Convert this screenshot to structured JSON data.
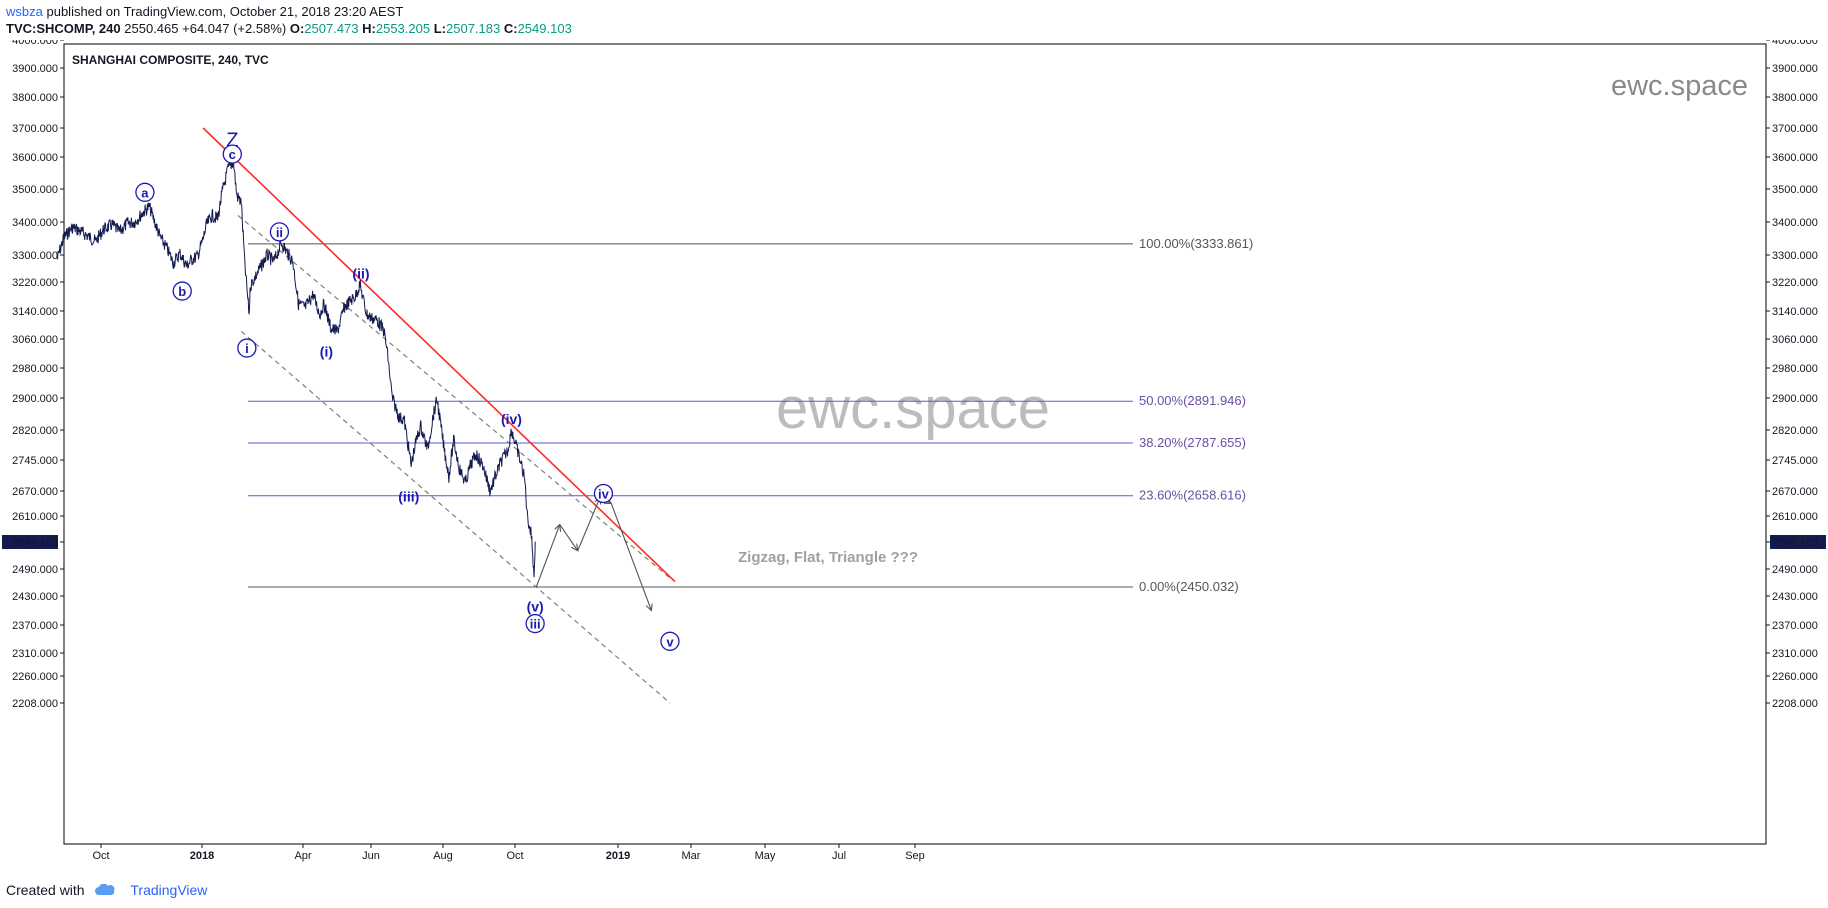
{
  "header": {
    "author": "wsbza",
    "published_text": "published on TradingView.com, October 21, 2018 23:20 AEST",
    "symbol": "TVC:SHCOMP, 240",
    "last": "2550.465",
    "change": "+64.047 (+2.58%)",
    "o_label": "O:",
    "o_value": "2507.473",
    "h_label": "H:",
    "h_value": "2553.205",
    "l_label": "L:",
    "l_value": "2507.183",
    "c_label": "C:",
    "c_value": "2549.103"
  },
  "footer": {
    "created_with": "Created with",
    "brand": "TradingView"
  },
  "colors": {
    "price": "#131b4f",
    "wave_label": "#1a1ab3",
    "fib_line": "#5b5bd6",
    "fib_text": "#6a4fa3",
    "trend_red": "#ff2a2a",
    "channel": "#7f7f7f",
    "last_price_bg": "#131b4f"
  },
  "chart_data": {
    "type": "line",
    "title": "SHANGHAI COMPOSITE, 240, TVC",
    "watermark": "ewc.space",
    "yaxis_ticks": [
      "4000.000",
      "3900.000",
      "3800.000",
      "3700.000",
      "3600.000",
      "3500.000",
      "3400.000",
      "3300.000",
      "3220.000",
      "3140.000",
      "3060.000",
      "2980.000",
      "2900.000",
      "2820.000",
      "2745.000",
      "2670.000",
      "2610.000",
      "2549.103",
      "2490.000",
      "2430.000",
      "2370.000",
      "2310.000",
      "2260.000",
      "2208.000"
    ],
    "xaxis_ticks": [
      "Oct",
      "2018",
      "Apr",
      "Jun",
      "Aug",
      "Oct",
      "2019",
      "Mar",
      "May",
      "Jul",
      "Sep"
    ],
    "last_price": "2549.103",
    "series": [
      {
        "values": [
          [
            "2017-08-22",
            3287
          ],
          [
            "2017-08-28",
            3352
          ],
          [
            "2017-09-05",
            3384
          ],
          [
            "2017-09-12",
            3372
          ],
          [
            "2017-09-18",
            3360
          ],
          [
            "2017-09-26",
            3341
          ],
          [
            "2017-10-03",
            3376
          ],
          [
            "2017-10-11",
            3392
          ],
          [
            "2017-10-18",
            3370
          ],
          [
            "2017-10-25",
            3396
          ],
          [
            "2017-11-01",
            3400
          ],
          [
            "2017-11-08",
            3428
          ],
          [
            "2017-11-14",
            3447
          ],
          [
            "2017-11-20",
            3390
          ],
          [
            "2017-11-24",
            3353
          ],
          [
            "2017-11-30",
            3320
          ],
          [
            "2017-12-06",
            3276
          ],
          [
            "2017-12-12",
            3305
          ],
          [
            "2017-12-18",
            3267
          ],
          [
            "2017-12-22",
            3285
          ],
          [
            "2017-12-28",
            3297
          ],
          [
            "2018-01-02",
            3349
          ],
          [
            "2018-01-05",
            3391
          ],
          [
            "2018-01-10",
            3420
          ],
          [
            "2018-01-15",
            3410
          ],
          [
            "2018-01-19",
            3490
          ],
          [
            "2018-01-24",
            3560
          ],
          [
            "2018-01-29",
            3587
          ],
          [
            "2018-02-01",
            3480
          ],
          [
            "2018-02-05",
            3460
          ],
          [
            "2018-02-08",
            3280
          ],
          [
            "2018-02-12",
            3130
          ],
          [
            "2018-02-13",
            3210
          ],
          [
            "2018-02-20",
            3250
          ],
          [
            "2018-02-28",
            3300
          ],
          [
            "2018-03-06",
            3280
          ],
          [
            "2018-03-13",
            3336
          ],
          [
            "2018-03-19",
            3301
          ],
          [
            "2018-03-23",
            3280
          ],
          [
            "2018-03-28",
            3160
          ],
          [
            "2018-04-03",
            3150
          ],
          [
            "2018-04-10",
            3185
          ],
          [
            "2018-04-16",
            3130
          ],
          [
            "2018-04-20",
            3160
          ],
          [
            "2018-04-26",
            3090
          ],
          [
            "2018-05-02",
            3082
          ],
          [
            "2018-05-08",
            3150
          ],
          [
            "2018-05-14",
            3170
          ],
          [
            "2018-05-18",
            3180
          ],
          [
            "2018-05-22",
            3214
          ],
          [
            "2018-05-28",
            3132
          ],
          [
            "2018-06-01",
            3120
          ],
          [
            "2018-06-06",
            3115
          ],
          [
            "2018-06-12",
            3083
          ],
          [
            "2018-06-15",
            3020
          ],
          [
            "2018-06-19",
            2900
          ],
          [
            "2018-06-25",
            2850
          ],
          [
            "2018-06-29",
            2847
          ],
          [
            "2018-07-05",
            2733
          ],
          [
            "2018-07-09",
            2790
          ],
          [
            "2018-07-13",
            2830
          ],
          [
            "2018-07-19",
            2772
          ],
          [
            "2018-07-24",
            2860
          ],
          [
            "2018-07-27",
            2896
          ],
          [
            "2018-08-02",
            2772
          ],
          [
            "2018-08-06",
            2705
          ],
          [
            "2018-08-10",
            2795
          ],
          [
            "2018-08-15",
            2723
          ],
          [
            "2018-08-20",
            2690
          ],
          [
            "2018-08-24",
            2730
          ],
          [
            "2018-08-29",
            2760
          ],
          [
            "2018-09-04",
            2730
          ],
          [
            "2018-09-10",
            2670
          ],
          [
            "2018-09-14",
            2702
          ],
          [
            "2018-09-19",
            2740
          ],
          [
            "2018-09-25",
            2770
          ],
          [
            "2018-09-28",
            2821
          ],
          [
            "2018-10-01",
            2790
          ],
          [
            "2018-10-08",
            2720
          ],
          [
            "2018-10-10",
            2690
          ],
          [
            "2018-10-12",
            2610
          ],
          [
            "2018-10-16",
            2560
          ],
          [
            "2018-10-18",
            2470
          ],
          [
            "2018-10-19",
            2550
          ]
        ]
      }
    ],
    "projection": [
      [
        "2018-10-20",
        2450
      ],
      [
        "2018-11-10",
        2590
      ],
      [
        "2018-11-26",
        2530
      ],
      [
        "2018-12-16",
        2655
      ],
      [
        "2018-12-26",
        2640
      ],
      [
        "2019-01-28",
        2400
      ]
    ],
    "fibonacci": [
      {
        "label": "100.00%(3333.861)",
        "price": 3333.861
      },
      {
        "label": "50.00%(2891.946)",
        "price": 2891.946
      },
      {
        "label": "38.20%(2787.655)",
        "price": 2787.655
      },
      {
        "label": "23.60%(2658.616)",
        "price": 2658.616
      },
      {
        "label": "0.00%(2450.032)",
        "price": 2450.032
      }
    ],
    "wave_labels": [
      {
        "text": "Z",
        "date": "2018-01-28",
        "price": 3660,
        "circled": false,
        "plain": true
      },
      {
        "text": "c",
        "date": "2018-01-28",
        "price": 3610,
        "circled": true
      },
      {
        "text": "a",
        "date": "2017-11-10",
        "price": 3490,
        "circled": true
      },
      {
        "text": "b",
        "date": "2017-12-14",
        "price": 3195,
        "circled": true
      },
      {
        "text": "ii",
        "date": "2018-03-11",
        "price": 3370,
        "circled": true
      },
      {
        "text": "i",
        "date": "2018-02-10",
        "price": 3035,
        "circled": true
      },
      {
        "text": "(i)",
        "date": "2018-04-22",
        "price": 3025,
        "circled": false
      },
      {
        "text": "(ii)",
        "date": "2018-05-23",
        "price": 3245,
        "circled": false
      },
      {
        "text": "(iii)",
        "date": "2018-07-03",
        "price": 2657,
        "circled": false
      },
      {
        "text": "(iv)",
        "date": "2018-09-28",
        "price": 2847,
        "circled": false
      },
      {
        "text": "(v)",
        "date": "2018-10-19",
        "price": 2408,
        "circled": false
      },
      {
        "text": "iii",
        "date": "2018-10-19",
        "price": 2373,
        "circled": true
      },
      {
        "text": "iv",
        "date": "2018-12-19",
        "price": 2664,
        "circled": true
      },
      {
        "text": "v",
        "date": "2019-02-12",
        "price": 2335,
        "circled": true
      }
    ],
    "annotation": "Zigzag, Flat, Triangle ???",
    "trendline": {
      "from": [
        "2018-01-02",
        3700
      ],
      "to": [
        "2019-02-16",
        2462
      ]
    },
    "channel_upper": {
      "from": [
        "2018-02-02",
        3420
      ],
      "to": [
        "2019-02-12",
        2470
      ]
    },
    "channel_lower": {
      "from": [
        "2018-02-05",
        3082
      ],
      "to": [
        "2019-02-12",
        2208
      ]
    }
  }
}
